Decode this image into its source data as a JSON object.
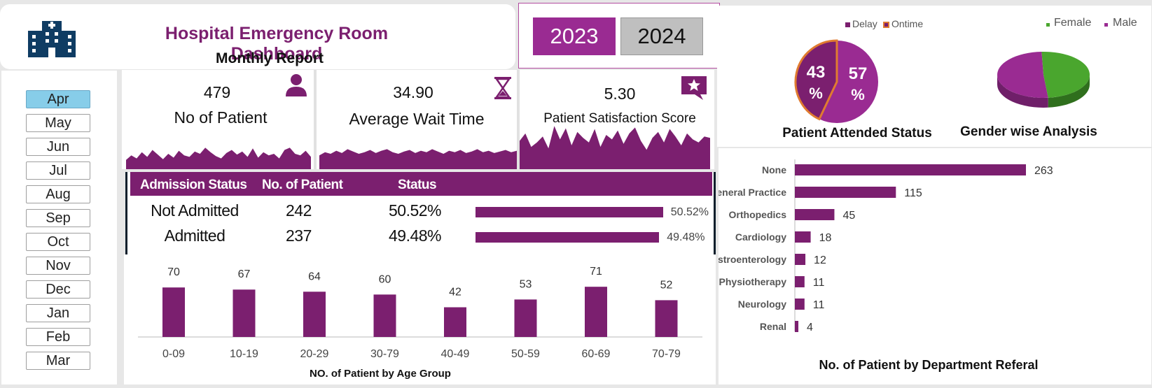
{
  "header": {
    "title": "Hospital Emergency Room Dashboard",
    "subtitle": "Monthly Report",
    "icon": "hospital-icon"
  },
  "years": [
    {
      "label": "2023",
      "selected": true
    },
    {
      "label": "2024",
      "selected": false
    }
  ],
  "months": [
    {
      "label": "Apr",
      "selected": true
    },
    {
      "label": "May",
      "selected": false
    },
    {
      "label": "Jun",
      "selected": false
    },
    {
      "label": "Jul",
      "selected": false
    },
    {
      "label": "Aug",
      "selected": false
    },
    {
      "label": "Sep",
      "selected": false
    },
    {
      "label": "Oct",
      "selected": false
    },
    {
      "label": "Nov",
      "selected": false
    },
    {
      "label": "Dec",
      "selected": false
    },
    {
      "label": "Jan",
      "selected": false
    },
    {
      "label": "Feb",
      "selected": false
    },
    {
      "label": "Mar",
      "selected": false
    }
  ],
  "kpis": {
    "patients": {
      "value": "479",
      "label": "No of Patient",
      "icon": "person-icon"
    },
    "wait": {
      "value": "34.90",
      "label": "Average Wait Time",
      "icon": "hourglass-icon"
    },
    "satisfaction": {
      "value": "5.30",
      "label": "Patient Satisfaction Score",
      "icon": "star-comment-icon"
    }
  },
  "admission": {
    "headers": [
      "Admission Status",
      "No. of Patient",
      "Status"
    ],
    "rows": [
      {
        "status": "Not Admitted",
        "count": "242",
        "pct": "50.52%",
        "fraction": 0.5052
      },
      {
        "status": "Admitted",
        "count": "237",
        "pct": "49.48%",
        "fraction": 0.4948
      }
    ]
  },
  "colors": {
    "accent": "#7b1f6f",
    "accent_light": "#9a2b92",
    "female": "#4aa62e",
    "male": "#9a2b92",
    "ontime_outline": "#e07b30",
    "slicer_selected": "#87cde9"
  },
  "chart_data": [
    {
      "type": "bar",
      "title": "NO. of Patient by Age Group",
      "categories": [
        "0-09",
        "10-19",
        "20-29",
        "30-79",
        "40-49",
        "50-59",
        "60-69",
        "70-79"
      ],
      "values": [
        70,
        67,
        64,
        60,
        42,
        53,
        71,
        52
      ],
      "ylim": [
        0,
        100
      ]
    },
    {
      "type": "pie",
      "title": "Patient Attended Status",
      "legend": [
        "Delay",
        "Ontime"
      ],
      "labels": [
        "Delay",
        "Ontime"
      ],
      "values": [
        57,
        43
      ],
      "data_labels": [
        "57 %",
        "43 %"
      ]
    },
    {
      "type": "pie",
      "title": "Gender wise Analysis",
      "legend": [
        "Female",
        "Male"
      ],
      "labels": [
        "Female",
        "Male"
      ],
      "values": [
        49,
        51
      ]
    },
    {
      "type": "bar",
      "orientation": "horizontal",
      "title": "No. of Patient by Department Referal",
      "categories": [
        "None",
        "General Practice",
        "Orthopedics",
        "Cardiology",
        "Gastroenterology",
        "Physiotherapy",
        "Neurology",
        "Renal"
      ],
      "values": [
        263,
        115,
        45,
        18,
        12,
        11,
        11,
        4
      ],
      "xlim": [
        0,
        300
      ]
    },
    {
      "type": "area",
      "name": "sparkline-patients",
      "values": [
        12,
        18,
        14,
        22,
        16,
        25,
        19,
        13,
        20,
        15,
        24,
        18,
        16,
        23,
        20,
        28,
        22,
        17,
        14,
        21,
        25,
        19,
        23,
        16,
        27,
        15,
        22,
        18,
        20,
        14,
        25,
        28,
        20,
        18,
        24,
        16
      ]
    },
    {
      "type": "area",
      "name": "sparkline-wait",
      "values": [
        18,
        22,
        20,
        24,
        21,
        26,
        23,
        20,
        22,
        25,
        21,
        24,
        26,
        22,
        20,
        23,
        25,
        21,
        24,
        22,
        26,
        23,
        20,
        24,
        22,
        25,
        21,
        23,
        26,
        22,
        24,
        21,
        23,
        25,
        22,
        24
      ]
    },
    {
      "type": "area",
      "name": "sparkline-satisfaction",
      "values": [
        38,
        48,
        30,
        36,
        44,
        28,
        58,
        40,
        55,
        32,
        50,
        42,
        36,
        54,
        30,
        46,
        40,
        52,
        34,
        48,
        56,
        38,
        26,
        42,
        50,
        36,
        54,
        44,
        32,
        48,
        40,
        36,
        44,
        42
      ]
    }
  ]
}
